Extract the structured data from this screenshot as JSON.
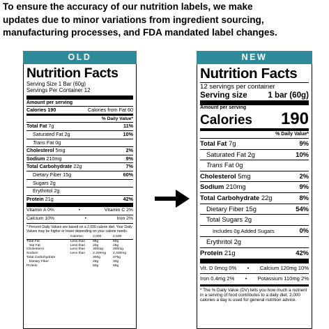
{
  "intro": {
    "lines": [
      "To ensure the accuracy of our nutrition labels, we make",
      "updates due to minor variations from ingredient sourcing,",
      "manufacturing processes, and FDA mandated label changes."
    ]
  },
  "colors": {
    "banner": "#2f8b99",
    "text": "#000000"
  },
  "old": {
    "banner": "OLD",
    "title": "Nutrition Facts",
    "serving_size": "Serving Size 1 Bar (60g)",
    "servings_per_container": "Servings Per Container 12",
    "amount_per_serving": "Amount per serving",
    "calories": "Calories 190",
    "calories_from_fat": "Calories from Fat 60",
    "dv_header": "% Daily Value*",
    "total_fat": {
      "label": "Total Fat",
      "amount": "7g",
      "dv": "11%"
    },
    "saturated_fat": {
      "label": "Saturated Fat 2g",
      "dv": "10%"
    },
    "trans_fat": {
      "label": "Trans",
      "rest": "Fat 0g"
    },
    "cholesterol": {
      "label": "Cholesterol",
      "amount": "5mg",
      "dv": "2%"
    },
    "sodium": {
      "label": "Sodium",
      "amount": "210mg",
      "dv": "9%"
    },
    "total_carb": {
      "label": "Total Carbohydrate",
      "amount": "22g",
      "dv": "7%"
    },
    "dietary_fiber": {
      "label": "Dietary Fiber 15g",
      "dv": "60%"
    },
    "sugars": {
      "label": "Sugars 2g"
    },
    "erythritol": {
      "label": "Erythritol 2g"
    },
    "protein": {
      "label": "Protein",
      "amount": "21g",
      "dv": "42%"
    },
    "vit_a": "Vitamin A 0%",
    "vit_c": "Vitamin C 2%",
    "calcium": "Calcium 10%",
    "iron": "Iron 2%",
    "bullet": "•",
    "footnote": "* Percent Daily Values are based on a 2,000 calorie diet. Your Daily Values may be higher or lower depending on your calorie needs.",
    "ref_table": {
      "header": [
        "",
        "Calories:",
        "2,000",
        "2,500"
      ],
      "rows": [
        [
          "Total Fat",
          "Less than",
          "65g",
          "80g"
        ],
        [
          "Sat Fat",
          "Less than",
          "20g",
          "25g"
        ],
        [
          "Cholesterol",
          "Less than",
          "300mg",
          "300mg"
        ],
        [
          "Sodium",
          "Less than",
          "2,400mg",
          "2,400mg"
        ],
        [
          "Total Carbohydrate",
          "",
          "300g",
          "375g"
        ],
        [
          "Dietary Fiber",
          "",
          "25g",
          "30g"
        ],
        [
          "Protein",
          "",
          "50g",
          "65g"
        ]
      ]
    }
  },
  "new": {
    "banner": "NEW",
    "title": "Nutrition Facts",
    "servings": "12 servings per container",
    "serving_size_label": "Serving size",
    "serving_size_value": "1 bar (60g)",
    "amount_per_serving": "Amount per serving",
    "calories_label": "Calories",
    "calories_value": "190",
    "dv_header": "% Daily Value*",
    "total_fat": {
      "label": "Total Fat",
      "amount": "7g",
      "dv": "9%"
    },
    "saturated_fat": {
      "label": "Saturated Fat 2g",
      "dv": "10%"
    },
    "trans_fat": {
      "label": "Trans",
      "rest": "Fat 0g"
    },
    "cholesterol": {
      "label": "Cholesterol",
      "amount": "5mg",
      "dv": "2%"
    },
    "sodium": {
      "label": "Sodium",
      "amount": "210mg",
      "dv": "9%"
    },
    "total_carb": {
      "label": "Total Carbohydrate",
      "amount": "22g",
      "dv": "8%"
    },
    "dietary_fiber": {
      "label": "Dietary Fiber 15g",
      "dv": "54%"
    },
    "total_sugars": {
      "label": "Total Sugars 2g"
    },
    "added_sugars": {
      "label": "Includes 0g Added Sugars",
      "dv": "0%"
    },
    "erythritol": {
      "label": "Erythritol 2g"
    },
    "protein": {
      "label": "Protein",
      "amount": "21g",
      "dv": "42%"
    },
    "vit_d": "Vit. D 0mcg 0%",
    "calcium": "Calcium 120mg 10%",
    "iron": "Iron 0.4mg 2%",
    "potassium": "Potassium 110mg 2%",
    "bullet": "•",
    "footnote": "* The % Daily Value (DV) tells you how much a nutrient in a serving of food contributes to a daily diet. 2,000 calories a day is used for general nutrition advice."
  }
}
